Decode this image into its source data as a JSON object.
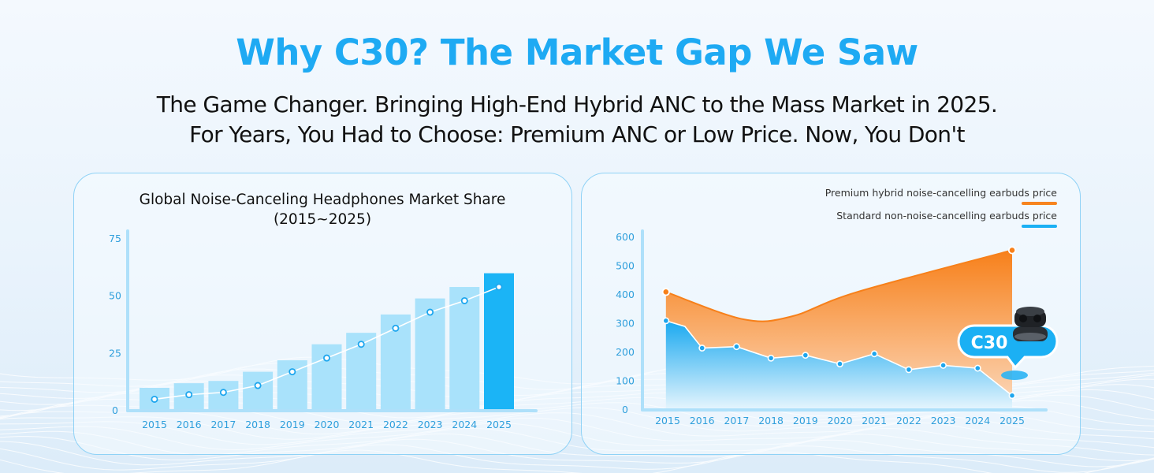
{
  "header": {
    "title": "Why C30? The Market Gap We Saw",
    "subtitle_line1": "The Game Changer. Bringing High-End Hybrid ANC to the Mass Market in 2025.",
    "subtitle_line2": "For Years, You Had to Choose: Premium ANC or Low Price. Now, You Don't"
  },
  "colors": {
    "accent": "#1eaaf3",
    "bar": "#a9e2fb",
    "bar_highlight": "#1bb4f6",
    "premium": "#f7841f",
    "standard": "#1bb0f4"
  },
  "callout": {
    "label": "C30",
    "icon": "earbuds-case-icon"
  },
  "chart_data": [
    {
      "type": "bar",
      "title": "Global Noise-Canceling Headphones Market Share",
      "subtitle": "(2015~2025)",
      "categories": [
        "2015",
        "2016",
        "2017",
        "2018",
        "2019",
        "2020",
        "2021",
        "2022",
        "2023",
        "2024",
        "2025"
      ],
      "values": [
        10,
        12,
        13,
        17,
        22,
        29,
        34,
        42,
        49,
        54,
        60
      ],
      "line_values": [
        5,
        7,
        8,
        11,
        17,
        23,
        29,
        36,
        43,
        48,
        54
      ],
      "yticks": [
        "0",
        "25",
        "50",
        "75"
      ],
      "ylim": [
        0,
        75
      ],
      "highlight_category": "2025",
      "grid": false,
      "xlabel": "",
      "ylabel": ""
    },
    {
      "type": "area",
      "categories": [
        "2015",
        "2016",
        "2017",
        "2018",
        "2019",
        "2020",
        "2021",
        "2022",
        "2023",
        "2024",
        "2025"
      ],
      "yticks": [
        "0",
        "100",
        "200",
        "300",
        "400",
        "500",
        "600"
      ],
      "ylim": [
        0,
        600
      ],
      "legend": "top-right",
      "grid": false,
      "series": [
        {
          "name": "Premium hybrid noise-cancelling earbuds price",
          "points": [
            [
              2014.95,
              410
            ],
            [
              2017.2,
              315
            ],
            [
              2018.6,
              325
            ],
            [
              2020.5,
              410
            ],
            [
              2025,
              555
            ]
          ]
        },
        {
          "name": "Standard non-noise-cancelling earbuds price",
          "values": [
            310,
            290,
            215,
            220,
            180,
            190,
            160,
            195,
            140,
            155,
            145,
            50
          ],
          "x": [
            2014.95,
            2015.5,
            2016,
            2017,
            2018,
            2019,
            2020,
            2021,
            2022,
            2023,
            2024,
            2025
          ]
        }
      ]
    }
  ]
}
